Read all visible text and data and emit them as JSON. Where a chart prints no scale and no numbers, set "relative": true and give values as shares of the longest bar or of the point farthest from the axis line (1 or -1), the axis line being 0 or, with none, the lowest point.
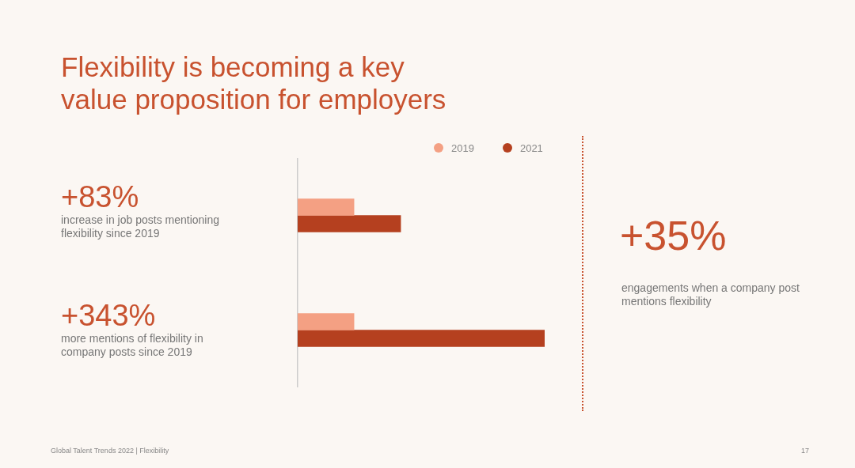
{
  "chart_data": [
    {
      "type": "bar",
      "title": "Flexibility is becoming a key value proposition for employers",
      "orientation": "horizontal",
      "relative": true,
      "categories": [
        null,
        null
      ],
      "legend": "top right",
      "series": [
        {
          "name": "2019",
          "color": "#f4a083",
          "values": [
            0.228,
            0.228
          ]
        },
        {
          "name": "2021",
          "color": "#b5401f",
          "values": [
            0.417,
            1
          ]
        }
      ],
      "annotations": [
        "+83%",
        "increase in job posts mentioning flexibility since 2019",
        "+343%",
        "more mentions of flexibility in company posts since 2019",
        "Global Talent Trends 2022 | Flexibility",
        "17"
      ]
    },
    {
      "type": "other",
      "annotations": [
        "+35%",
        "engagements when a company post mentions flexibility"
      ]
    }
  ]
}
